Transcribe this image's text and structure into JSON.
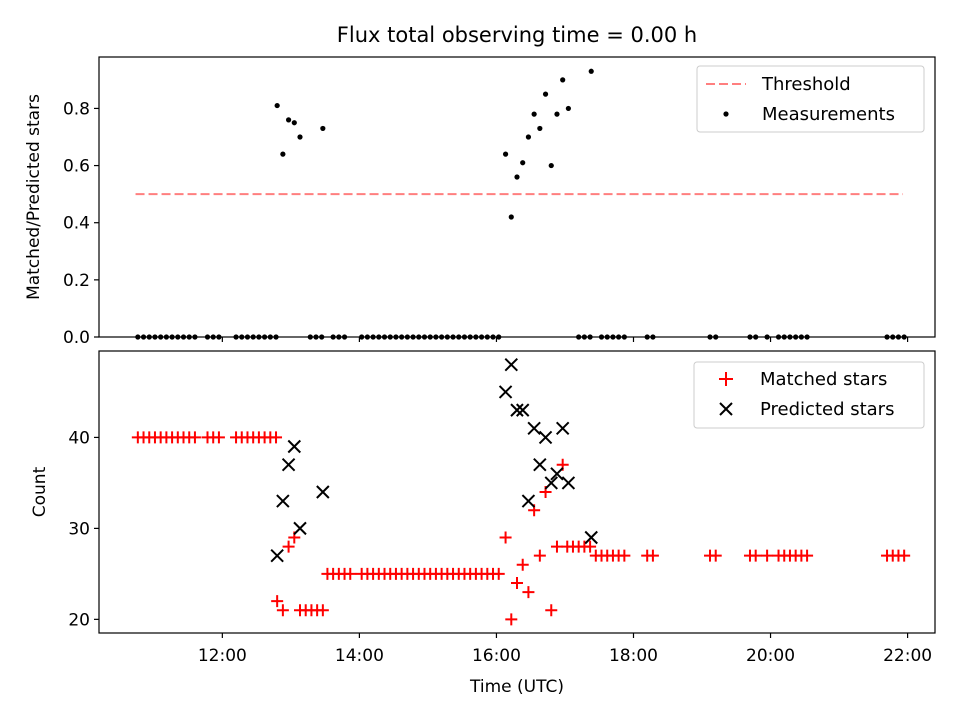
{
  "title": "Flux total observing time = 0.00 h",
  "colors": {
    "threshold": "#ff7f7f",
    "measurements": "#000000",
    "matched": "#ff0000",
    "predicted": "#000000"
  },
  "chart_data": [
    {
      "type": "scatter",
      "ylabel": "Matched/Predicted stars",
      "xlabel": "",
      "xlim": [
        "10:12",
        "22:24"
      ],
      "ylim": [
        0,
        0.98
      ],
      "yticks": [
        0.0,
        0.2,
        0.4,
        0.6,
        0.8
      ],
      "grid": false,
      "legend_position": "top-right",
      "series": [
        {
          "name": "Threshold",
          "kind": "dashed-line",
          "x": [
            "10:44",
            "21:56"
          ],
          "y": [
            0.5,
            0.5
          ]
        },
        {
          "name": "Measurements",
          "kind": "dots",
          "x": [
            "10:46",
            "10:51",
            "10:56",
            "11:01",
            "11:06",
            "11:11",
            "11:16",
            "11:21",
            "11:26",
            "11:31",
            "11:36",
            "11:47",
            "11:52",
            "11:57",
            "12:12",
            "12:17",
            "12:22",
            "12:27",
            "12:32",
            "12:37",
            "12:42",
            "12:47",
            "13:17",
            "13:22",
            "13:27",
            "13:37",
            "13:42",
            "13:47",
            "14:02",
            "14:07",
            "14:12",
            "14:17",
            "14:22",
            "14:27",
            "14:32",
            "14:37",
            "14:42",
            "14:47",
            "14:52",
            "14:57",
            "15:02",
            "15:07",
            "15:12",
            "15:17",
            "15:22",
            "15:27",
            "15:32",
            "15:37",
            "15:42",
            "15:47",
            "15:52",
            "15:57",
            "16:02",
            "17:12",
            "17:17",
            "17:22",
            "17:32",
            "17:37",
            "17:42",
            "17:47",
            "17:52",
            "18:12",
            "18:17",
            "19:07",
            "19:12",
            "19:42",
            "19:47",
            "19:57",
            "20:07",
            "20:12",
            "20:17",
            "20:22",
            "20:27",
            "20:32",
            "21:42",
            "21:47",
            "21:52",
            "21:57",
            "12:48",
            "12:53",
            "12:58",
            "13:03",
            "13:08",
            "13:28",
            "16:08",
            "16:13",
            "16:18",
            "16:23",
            "16:28",
            "16:33",
            "16:38",
            "16:43",
            "16:48",
            "16:53",
            "16:58",
            "17:03",
            "17:23"
          ],
          "y": [
            0,
            0,
            0,
            0,
            0,
            0,
            0,
            0,
            0,
            0,
            0,
            0,
            0,
            0,
            0,
            0,
            0,
            0,
            0,
            0,
            0,
            0,
            0,
            0,
            0,
            0,
            0,
            0,
            0,
            0,
            0,
            0,
            0,
            0,
            0,
            0,
            0,
            0,
            0,
            0,
            0,
            0,
            0,
            0,
            0,
            0,
            0,
            0,
            0,
            0,
            0,
            0,
            0,
            0,
            0,
            0,
            0,
            0,
            0,
            0,
            0,
            0,
            0,
            0,
            0,
            0,
            0,
            0,
            0,
            0,
            0,
            0,
            0,
            0,
            0,
            0,
            0,
            0,
            0.81,
            0.64,
            0.76,
            0.75,
            0.7,
            0.73,
            0.64,
            0.42,
            0.56,
            0.61,
            0.7,
            0.78,
            0.73,
            0.85,
            0.6,
            0.78,
            0.9,
            0.8,
            0.93
          ]
        }
      ]
    },
    {
      "type": "scatter",
      "ylabel": "Count",
      "xlabel": "Time (UTC)",
      "xlim": [
        "10:12",
        "22:24"
      ],
      "ylim": [
        18.5,
        49.5
      ],
      "yticks": [
        20,
        30,
        40
      ],
      "xticks": [
        "12:00",
        "14:00",
        "16:00",
        "18:00",
        "20:00",
        "22:00"
      ],
      "grid": false,
      "legend_position": "top-right",
      "series": [
        {
          "name": "Matched stars",
          "marker": "plus",
          "x": [
            "10:46",
            "10:51",
            "10:56",
            "11:01",
            "11:06",
            "11:11",
            "11:16",
            "11:21",
            "11:26",
            "11:31",
            "11:36",
            "11:47",
            "11:52",
            "11:57",
            "12:12",
            "12:17",
            "12:22",
            "12:27",
            "12:32",
            "12:37",
            "12:42",
            "12:47",
            "12:48",
            "12:53",
            "12:58",
            "13:03",
            "13:08",
            "13:13",
            "13:18",
            "13:23",
            "13:28",
            "13:32",
            "13:37",
            "13:42",
            "13:47",
            "13:52",
            "14:02",
            "14:07",
            "14:12",
            "14:17",
            "14:22",
            "14:27",
            "14:32",
            "14:37",
            "14:42",
            "14:47",
            "14:52",
            "14:57",
            "15:02",
            "15:07",
            "15:12",
            "15:17",
            "15:22",
            "15:27",
            "15:32",
            "15:37",
            "15:42",
            "15:47",
            "15:52",
            "15:57",
            "16:02",
            "16:08",
            "16:13",
            "16:18",
            "16:23",
            "16:28",
            "16:33",
            "16:38",
            "16:43",
            "16:48",
            "16:53",
            "16:58",
            "17:02",
            "17:07",
            "17:12",
            "17:17",
            "17:22",
            "17:27",
            "17:32",
            "17:37",
            "17:42",
            "17:47",
            "17:52",
            "18:12",
            "18:17",
            "19:07",
            "19:12",
            "19:42",
            "19:47",
            "19:57",
            "20:07",
            "20:12",
            "20:17",
            "20:22",
            "20:27",
            "20:32",
            "21:42",
            "21:47",
            "21:52",
            "21:57"
          ],
          "y": [
            40,
            40,
            40,
            40,
            40,
            40,
            40,
            40,
            40,
            40,
            40,
            40,
            40,
            40,
            40,
            40,
            40,
            40,
            40,
            40,
            40,
            40,
            22,
            21,
            28,
            29,
            21,
            21,
            21,
            21,
            21,
            25,
            25,
            25,
            25,
            25,
            25,
            25,
            25,
            25,
            25,
            25,
            25,
            25,
            25,
            25,
            25,
            25,
            25,
            25,
            25,
            25,
            25,
            25,
            25,
            25,
            25,
            25,
            25,
            25,
            25,
            29,
            20,
            24,
            26,
            23,
            32,
            27,
            34,
            21,
            28,
            37,
            28,
            28,
            28,
            28,
            28,
            27,
            27,
            27,
            27,
            27,
            27,
            27,
            27,
            27,
            27,
            27,
            27,
            27,
            27,
            27,
            27,
            27,
            27,
            27,
            27,
            27,
            27,
            27
          ]
        },
        {
          "name": "Predicted stars",
          "marker": "x",
          "x": [
            "12:48",
            "12:53",
            "12:58",
            "13:03",
            "13:08",
            "13:28",
            "16:08",
            "16:13",
            "16:18",
            "16:23",
            "16:28",
            "16:33",
            "16:38",
            "16:43",
            "16:48",
            "16:53",
            "16:58",
            "17:03",
            "17:23"
          ],
          "y": [
            27,
            33,
            37,
            39,
            30,
            34,
            45,
            48,
            43,
            43,
            33,
            41,
            37,
            40,
            35,
            36,
            41,
            35,
            29
          ]
        }
      ]
    }
  ]
}
